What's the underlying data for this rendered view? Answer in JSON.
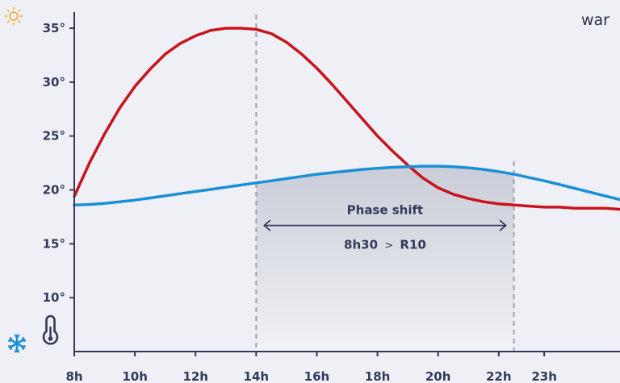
{
  "chart_data": {
    "type": "line",
    "x_ticks": [
      {
        "x": 8,
        "label": "8h"
      },
      {
        "x": 10,
        "label": "10h"
      },
      {
        "x": 12,
        "label": "12h"
      },
      {
        "x": 14,
        "label": "14h"
      },
      {
        "x": 16,
        "label": "16h"
      },
      {
        "x": 18,
        "label": "18h"
      },
      {
        "x": 20,
        "label": "20h"
      },
      {
        "x": 22,
        "label": "22h"
      },
      {
        "x": 23.5,
        "label": "23h"
      }
    ],
    "y_ticks": [
      {
        "y": 10,
        "label": "10°"
      },
      {
        "y": 15,
        "label": "15°"
      },
      {
        "y": 20,
        "label": "20°"
      },
      {
        "y": 25,
        "label": "25°"
      },
      {
        "y": 30,
        "label": "30°"
      },
      {
        "y": 35,
        "label": "35°"
      }
    ],
    "xlim": [
      8,
      26
    ],
    "ylim": [
      5,
      36.5
    ],
    "series": [
      {
        "color": "#c8141e",
        "x": [
          8,
          8.5,
          9,
          9.5,
          10,
          10.5,
          11,
          11.5,
          12,
          12.5,
          13,
          13.5,
          14,
          14.5,
          15,
          15.5,
          16,
          16.5,
          17,
          17.5,
          18,
          18.5,
          19,
          19.5,
          20,
          20.5,
          21,
          21.5,
          22,
          22.5,
          23,
          23.5,
          24,
          24.5,
          25,
          25.5,
          26
        ],
        "y": [
          19.4,
          22.5,
          25.2,
          27.6,
          29.6,
          31.2,
          32.6,
          33.6,
          34.3,
          34.8,
          35.0,
          35.0,
          34.9,
          34.5,
          33.7,
          32.6,
          31.3,
          29.8,
          28.2,
          26.6,
          25.0,
          23.6,
          22.3,
          21.1,
          20.2,
          19.6,
          19.2,
          18.9,
          18.7,
          18.6,
          18.5,
          18.4,
          18.4,
          18.3,
          18.3,
          18.3,
          18.2
        ]
      },
      {
        "color": "#1a8fd6",
        "x": [
          8,
          8.5,
          9,
          9.5,
          10,
          10.5,
          11,
          11.5,
          12,
          12.5,
          13,
          13.5,
          14,
          14.5,
          15,
          15.5,
          16,
          16.5,
          17,
          17.5,
          18,
          18.5,
          19,
          19.5,
          20,
          20.5,
          21,
          21.5,
          22,
          22.5,
          23,
          23.5,
          24,
          24.5,
          25,
          25.5,
          26
        ],
        "y": [
          18.6,
          18.65,
          18.75,
          18.9,
          19.05,
          19.25,
          19.45,
          19.65,
          19.85,
          20.05,
          20.25,
          20.45,
          20.65,
          20.85,
          21.05,
          21.25,
          21.45,
          21.6,
          21.75,
          21.9,
          22.0,
          22.1,
          22.15,
          22.2,
          22.2,
          22.15,
          22.05,
          21.9,
          21.7,
          21.45,
          21.15,
          20.85,
          20.5,
          20.15,
          19.8,
          19.45,
          19.1
        ]
      }
    ],
    "band": {
      "from": 14,
      "to": 22.5
    },
    "annotation": {
      "label": "Phase shift",
      "value_left": "8h30",
      "value_sep": ">",
      "value_right": "R10",
      "y": 16.7
    },
    "corner_text": "war",
    "icons": {
      "top": "sun-icon",
      "bottom": "snowflake-icon",
      "thermometer": "thermometer-icon",
      "sun_color": "#f5a623",
      "snow_color": "#1a8fd6"
    }
  }
}
